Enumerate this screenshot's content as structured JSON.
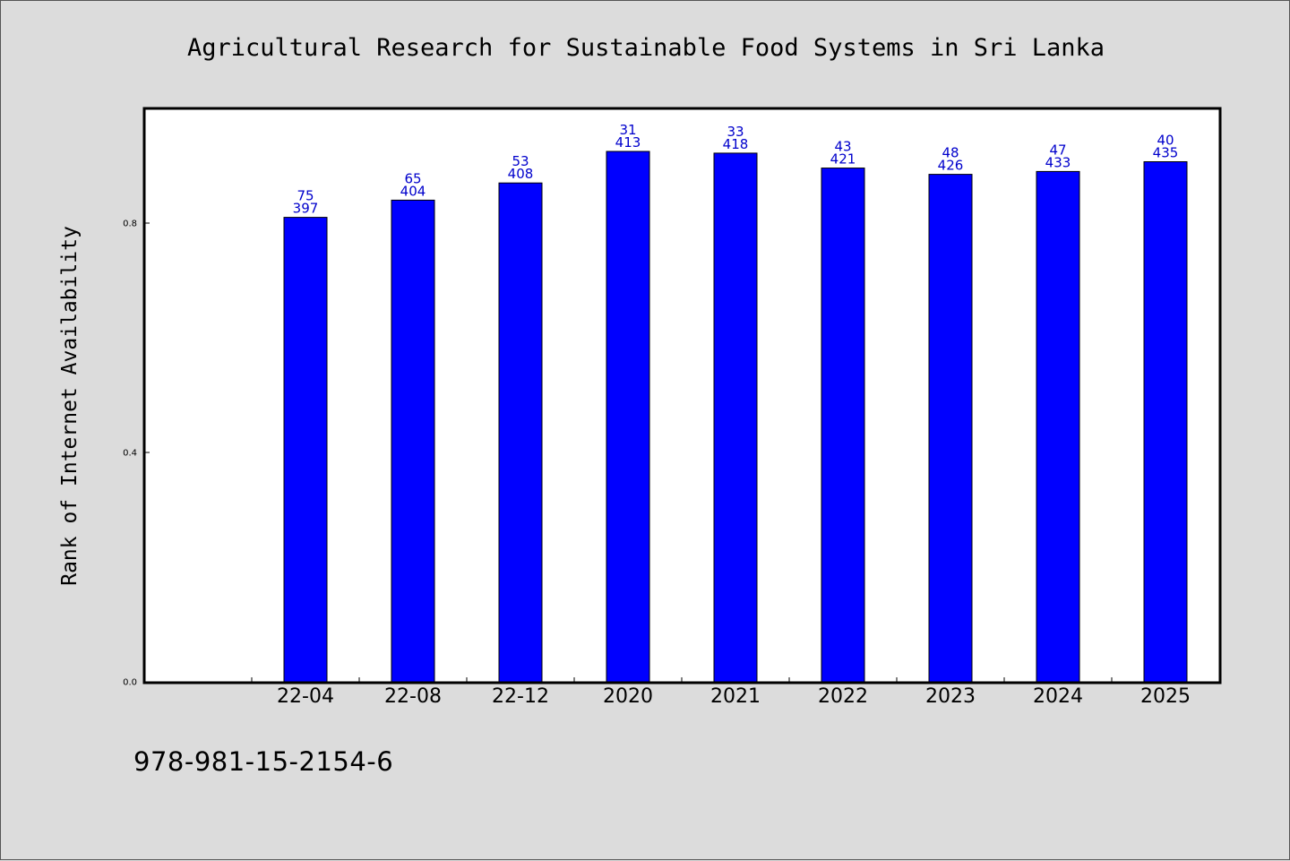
{
  "chart_data": {
    "type": "bar",
    "title": "Agricultural Research for Sustainable Food Systems in Sri Lanka",
    "xlabel": "",
    "ylabel": "Rank of Internet Availability",
    "categories": [
      "22-04",
      "22-08",
      "22-12",
      "2020",
      "2021",
      "2022",
      "2023",
      "2024",
      "2025"
    ],
    "values": [
      0.81,
      0.84,
      0.87,
      0.925,
      0.922,
      0.896,
      0.885,
      0.89,
      0.907
    ],
    "data_labels_top": [
      "75",
      "65",
      "53",
      "31",
      "33",
      "43",
      "48",
      "47",
      "40"
    ],
    "data_labels_bottom": [
      "397",
      "404",
      "408",
      "413",
      "418",
      "421",
      "426",
      "433",
      "435"
    ],
    "yticks": [
      "0.0",
      "0.4",
      "0.8"
    ],
    "ytick_values": [
      0.0,
      0.4,
      0.8
    ],
    "ylim": [
      0,
      1.0
    ],
    "grid": false,
    "colors": {
      "bar": "#0000ff",
      "bar_label": "#0000cc",
      "background": "#dcdcdc",
      "plot_area": "#ffffff"
    }
  },
  "footnote": "978-981-15-2154-6"
}
